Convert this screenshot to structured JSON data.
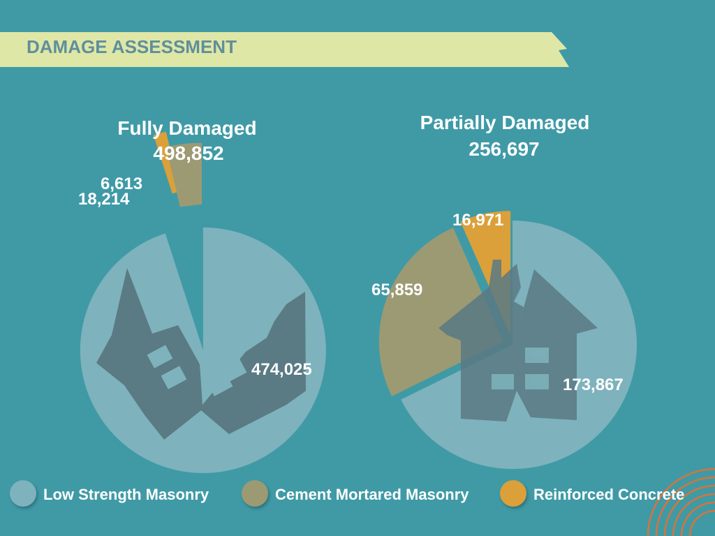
{
  "header": {
    "title": "DAMAGE ASSESSMENT"
  },
  "colors": {
    "background": "#3f9aa6",
    "banner": "#dfe7a7",
    "low_strength_masonry": "#7eb2bc",
    "cement_mortared_masonry": "#9c9a73",
    "reinforced_concrete": "#dba03a",
    "house_silhouette": "#5a7a84"
  },
  "chart_data": [
    {
      "type": "pie",
      "title": "Fully Damaged",
      "total": "498,852",
      "slices": [
        {
          "category": "Low Strength Masonry",
          "value": 474025,
          "label": "474,025"
        },
        {
          "category": "Cement Mortared Masonry",
          "value": 18214,
          "label": "18,214"
        },
        {
          "category": "Reinforced Concrete",
          "value": 6613,
          "label": "6,613"
        }
      ]
    },
    {
      "type": "pie",
      "title": "Partially Damaged",
      "total": "256,697",
      "slices": [
        {
          "category": "Low Strength Masonry",
          "value": 173867,
          "label": "173,867"
        },
        {
          "category": "Cement Mortared Masonry",
          "value": 65859,
          "label": "65,859"
        },
        {
          "category": "Reinforced Concrete",
          "value": 16971,
          "label": "16,971"
        }
      ]
    }
  ],
  "legend": {
    "items": [
      {
        "label": "Low Strength Masonry",
        "icon": "circle-swatch"
      },
      {
        "label": "Cement Mortared Masonry",
        "icon": "circle-swatch"
      },
      {
        "label": "Reinforced Concrete",
        "icon": "circle-swatch"
      }
    ]
  }
}
